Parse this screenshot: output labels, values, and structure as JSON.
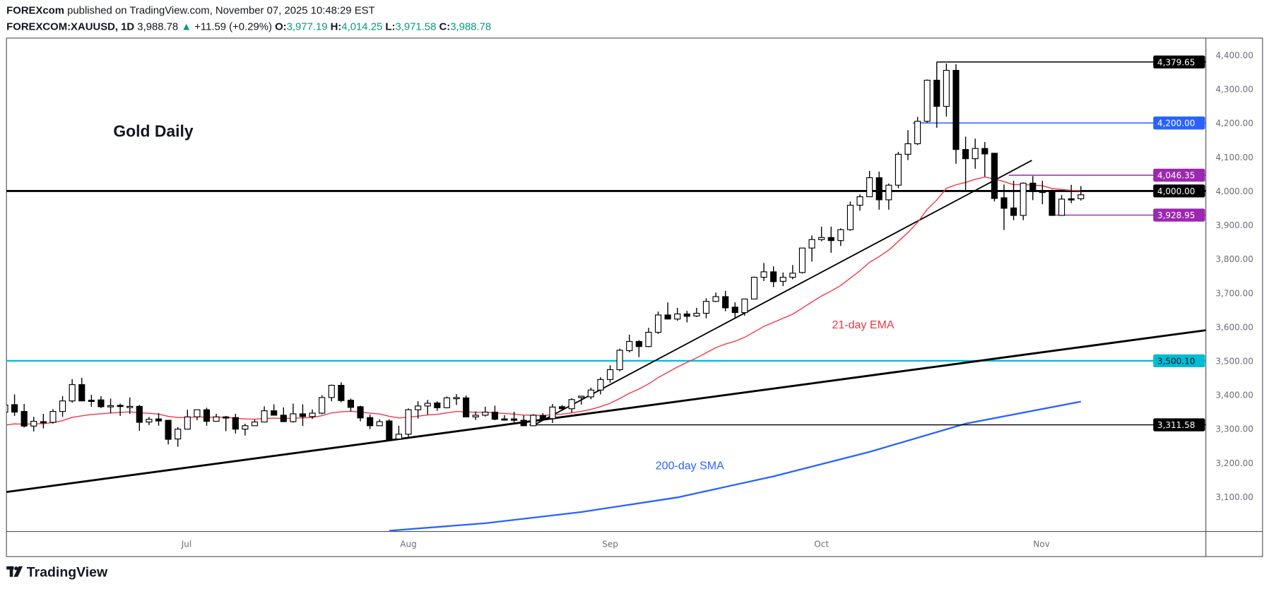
{
  "header": {
    "publisher": "FOREXcom",
    "published_text": "published on TradingView.com, November 07, 2025 10:48:29 EST",
    "symbol": "FOREXCOM:XAUUSD, 1D",
    "last": "3,988.78",
    "change": "+11.59 (+0.29%)",
    "o_label": "O:",
    "o": "3,977.19",
    "h_label": "H:",
    "h": "4,014.25",
    "l_label": "L:",
    "l": "3,971.58",
    "c_label": "C:",
    "c": "3,988.78",
    "change_direction": "up",
    "up_color": "#089981"
  },
  "footer": {
    "brand": "TradingView",
    "logo_icon": "tradingview-logo-icon"
  },
  "chart_data": {
    "type": "candlestick",
    "title": "Gold Daily",
    "annotations": [
      {
        "text": "21-day EMA",
        "color": "#f23645"
      },
      {
        "text": "200-day SMA",
        "color": "#2962ff"
      }
    ],
    "ylim": [
      3000,
      4420
    ],
    "y_ticks": [
      "4,400.00",
      "4,300.00",
      "4,200.00",
      "4,100.00",
      "4,000.00",
      "3,900.00",
      "3,800.00",
      "3,700.00",
      "3,600.00",
      "3,500.00",
      "3,400.00",
      "3,300.00",
      "3,200.00",
      "3,100.00"
    ],
    "y_tick_values": [
      4400,
      4300,
      4200,
      4100,
      4000,
      3900,
      3800,
      3700,
      3600,
      3500,
      3400,
      3300,
      3200,
      3100
    ],
    "x_ticks": [
      {
        "label": "Jul",
        "bar": 18.9
      },
      {
        "label": "Aug",
        "bar": 42
      },
      {
        "label": "Sep",
        "bar": 63
      },
      {
        "label": "Oct",
        "bar": 85
      },
      {
        "label": "Nov",
        "bar": 107.9
      }
    ],
    "ohlc_columns": [
      "open",
      "high",
      "low",
      "close"
    ],
    "ohlc": [
      [
        3349,
        3372,
        3347,
        3370
      ],
      [
        3371,
        3401,
        3338,
        3349
      ],
      [
        3351,
        3373,
        3304,
        3308
      ],
      [
        3308,
        3335,
        3292,
        3322
      ],
      [
        3321,
        3344,
        3301,
        3320
      ],
      [
        3319,
        3358,
        3315,
        3351
      ],
      [
        3351,
        3396,
        3335,
        3382
      ],
      [
        3382,
        3446,
        3377,
        3430
      ],
      [
        3430,
        3450,
        3382,
        3382
      ],
      [
        3384,
        3400,
        3365,
        3382
      ],
      [
        3385,
        3396,
        3361,
        3365
      ],
      [
        3367,
        3389,
        3346,
        3368
      ],
      [
        3369,
        3374,
        3338,
        3367
      ],
      [
        3366,
        3392,
        3344,
        3366
      ],
      [
        3366,
        3370,
        3294,
        3319
      ],
      [
        3320,
        3335,
        3311,
        3328
      ],
      [
        3329,
        3346,
        3309,
        3323
      ],
      [
        3325,
        3325,
        3254,
        3269
      ],
      [
        3270,
        3305,
        3247,
        3299
      ],
      [
        3299,
        3356,
        3299,
        3335
      ],
      [
        3335,
        3356,
        3325,
        3356
      ],
      [
        3356,
        3362,
        3309,
        3322
      ],
      [
        3322,
        3344,
        3322,
        3335
      ],
      [
        3335,
        3338,
        3293,
        3334
      ],
      [
        3333,
        3344,
        3286,
        3299
      ],
      [
        3299,
        3315,
        3280,
        3309
      ],
      [
        3309,
        3327,
        3309,
        3320
      ],
      [
        3320,
        3366,
        3320,
        3353
      ],
      [
        3353,
        3372,
        3340,
        3340
      ],
      [
        3340,
        3363,
        3321,
        3321
      ],
      [
        3321,
        3374,
        3318,
        3344
      ],
      [
        3344,
        3372,
        3308,
        3336
      ],
      [
        3336,
        3357,
        3329,
        3346
      ],
      [
        3346,
        3399,
        3343,
        3392
      ],
      [
        3392,
        3430,
        3381,
        3428
      ],
      [
        3428,
        3437,
        3378,
        3383
      ],
      [
        3384,
        3389,
        3351,
        3363
      ],
      [
        3365,
        3368,
        3322,
        3332
      ],
      [
        3333,
        3342,
        3299,
        3309
      ],
      [
        3309,
        3328,
        3309,
        3321
      ],
      [
        3323,
        3328,
        3264,
        3269
      ],
      [
        3270,
        3309,
        3270,
        3284
      ],
      [
        3284,
        3360,
        3277,
        3356
      ],
      [
        3356,
        3381,
        3330,
        3367
      ],
      [
        3367,
        3385,
        3342,
        3375
      ],
      [
        3376,
        3381,
        3353,
        3362
      ],
      [
        3362,
        3395,
        3360,
        3391
      ],
      [
        3391,
        3402,
        3370,
        3392
      ],
      [
        3391,
        3398,
        3335,
        3335
      ],
      [
        3335,
        3351,
        3326,
        3340
      ],
      [
        3340,
        3365,
        3336,
        3349
      ],
      [
        3349,
        3368,
        3325,
        3328
      ],
      [
        3329,
        3340,
        3327,
        3328
      ],
      [
        3329,
        3350,
        3316,
        3325
      ],
      [
        3325,
        3339,
        3308,
        3309
      ],
      [
        3309,
        3343,
        3308,
        3340
      ],
      [
        3339,
        3346,
        3324,
        3330
      ],
      [
        3330,
        3373,
        3317,
        3364
      ],
      [
        3365,
        3370,
        3356,
        3359
      ],
      [
        3359,
        3390,
        3348,
        3386
      ],
      [
        3392,
        3396,
        3371,
        3396
      ],
      [
        3394,
        3421,
        3387,
        3414
      ],
      [
        3414,
        3452,
        3401,
        3445
      ],
      [
        3445,
        3487,
        3436,
        3474
      ],
      [
        3474,
        3536,
        3469,
        3531
      ],
      [
        3530,
        3577,
        3525,
        3557
      ],
      [
        3557,
        3561,
        3511,
        3542
      ],
      [
        3542,
        3597,
        3540,
        3584
      ],
      [
        3584,
        3645,
        3579,
        3635
      ],
      [
        3635,
        3672,
        3623,
        3623
      ],
      [
        3623,
        3656,
        3618,
        3638
      ],
      [
        3638,
        3647,
        3613,
        3631
      ],
      [
        3632,
        3656,
        3629,
        3640
      ],
      [
        3640,
        3684,
        3625,
        3675
      ],
      [
        3675,
        3701,
        3673,
        3689
      ],
      [
        3689,
        3706,
        3646,
        3656
      ],
      [
        3658,
        3672,
        3627,
        3642
      ],
      [
        3642,
        3682,
        3633,
        3682
      ],
      [
        3682,
        3748,
        3682,
        3746
      ],
      [
        3746,
        3788,
        3735,
        3762
      ],
      [
        3762,
        3778,
        3717,
        3733
      ],
      [
        3734,
        3760,
        3720,
        3746
      ],
      [
        3746,
        3782,
        3740,
        3758
      ],
      [
        3760,
        3832,
        3757,
        3832
      ],
      [
        3832,
        3869,
        3792,
        3857
      ],
      [
        3857,
        3895,
        3852,
        3863
      ],
      [
        3863,
        3895,
        3818,
        3854
      ],
      [
        3854,
        3890,
        3838,
        3886
      ],
      [
        3886,
        3969,
        3883,
        3958
      ],
      [
        3958,
        3990,
        3942,
        3983
      ],
      [
        3983,
        4059,
        3983,
        4039
      ],
      [
        4039,
        4057,
        3945,
        3974
      ],
      [
        3974,
        4022,
        3945,
        4017
      ],
      [
        4017,
        4115,
        4008,
        4108
      ],
      [
        4108,
        4179,
        4091,
        4139
      ],
      [
        4139,
        4218,
        4135,
        4205
      ],
      [
        4205,
        4328,
        4201,
        4326
      ],
      [
        4326,
        4379.65,
        4186,
        4249
      ],
      [
        4249,
        4375,
        4219,
        4355
      ],
      [
        4355,
        4373,
        4080,
        4122
      ],
      [
        4122,
        4160,
        4003,
        4095
      ],
      [
        4095,
        4154,
        4065,
        4125
      ],
      [
        4125,
        4144,
        4042,
        4109
      ],
      [
        4111,
        4111,
        3969,
        3978
      ],
      [
        3980,
        4019,
        3885,
        3949
      ],
      [
        3950,
        4030,
        3914,
        3928
      ],
      [
        3928,
        4025,
        3914,
        4023
      ],
      [
        4023,
        4044,
        3973,
        3998
      ],
      [
        3999,
        4030,
        3961,
        3997
      ],
      [
        3998,
        4004,
        3928,
        3928
      ],
      [
        3928,
        3988,
        3928,
        3976
      ],
      [
        3977,
        4018,
        3964,
        3976
      ],
      [
        3977.19,
        4014.25,
        3971.58,
        3988.78
      ]
    ],
    "ema21_seed": 3305,
    "sma200_points": [
      [
        40,
        3000
      ],
      [
        50,
        3022
      ],
      [
        60,
        3055
      ],
      [
        70,
        3098
      ],
      [
        80,
        3160
      ],
      [
        90,
        3232
      ],
      [
        100,
        3315
      ],
      [
        112,
        3380
      ]
    ],
    "levels": [
      {
        "value": 4379.65,
        "label": "4,379.65",
        "from_bar": 97,
        "color": "#000000",
        "text_color": "#ffffff",
        "thick": false
      },
      {
        "value": 4200,
        "label": "4,200.00",
        "from_bar": 94.5,
        "color": "#2962ff",
        "text_color": "#ffffff",
        "thick": false
      },
      {
        "value": 4046.35,
        "label": "4,046.35",
        "from_bar": 104.5,
        "color": "#9c27b0",
        "text_color": "#ffffff",
        "thick": false
      },
      {
        "value": 4000,
        "label": "4,000.00",
        "from_bar": -0.2,
        "color": "#000000",
        "text_color": "#ffffff",
        "thick": true
      },
      {
        "value": 3928.95,
        "label": "3,928.95",
        "from_bar": 108.7,
        "color": "#9c27b0",
        "text_color": "#ffffff",
        "thick": false
      },
      {
        "value": 3500.1,
        "label": "3,500.10",
        "from_bar": -0.6,
        "color": "#00bcd4",
        "text_color": "#131722",
        "thick": false
      },
      {
        "value": 3311.58,
        "label": "3,311.58",
        "from_bar": 54.6,
        "color": "#000000",
        "text_color": "#ffffff",
        "thick": false
      }
    ],
    "trendlines": [
      {
        "from": [
          0.16,
          3114
        ],
        "to": [
          125,
          3590
        ],
        "thick": true
      },
      {
        "from": [
          55,
          3310
        ],
        "to": [
          106.9,
          4090
        ],
        "thick": false
      }
    ],
    "colors": {
      "up_body": "#ffffff",
      "down_body": "#000000",
      "ema": "#f23645",
      "sma": "#2962ff"
    }
  }
}
